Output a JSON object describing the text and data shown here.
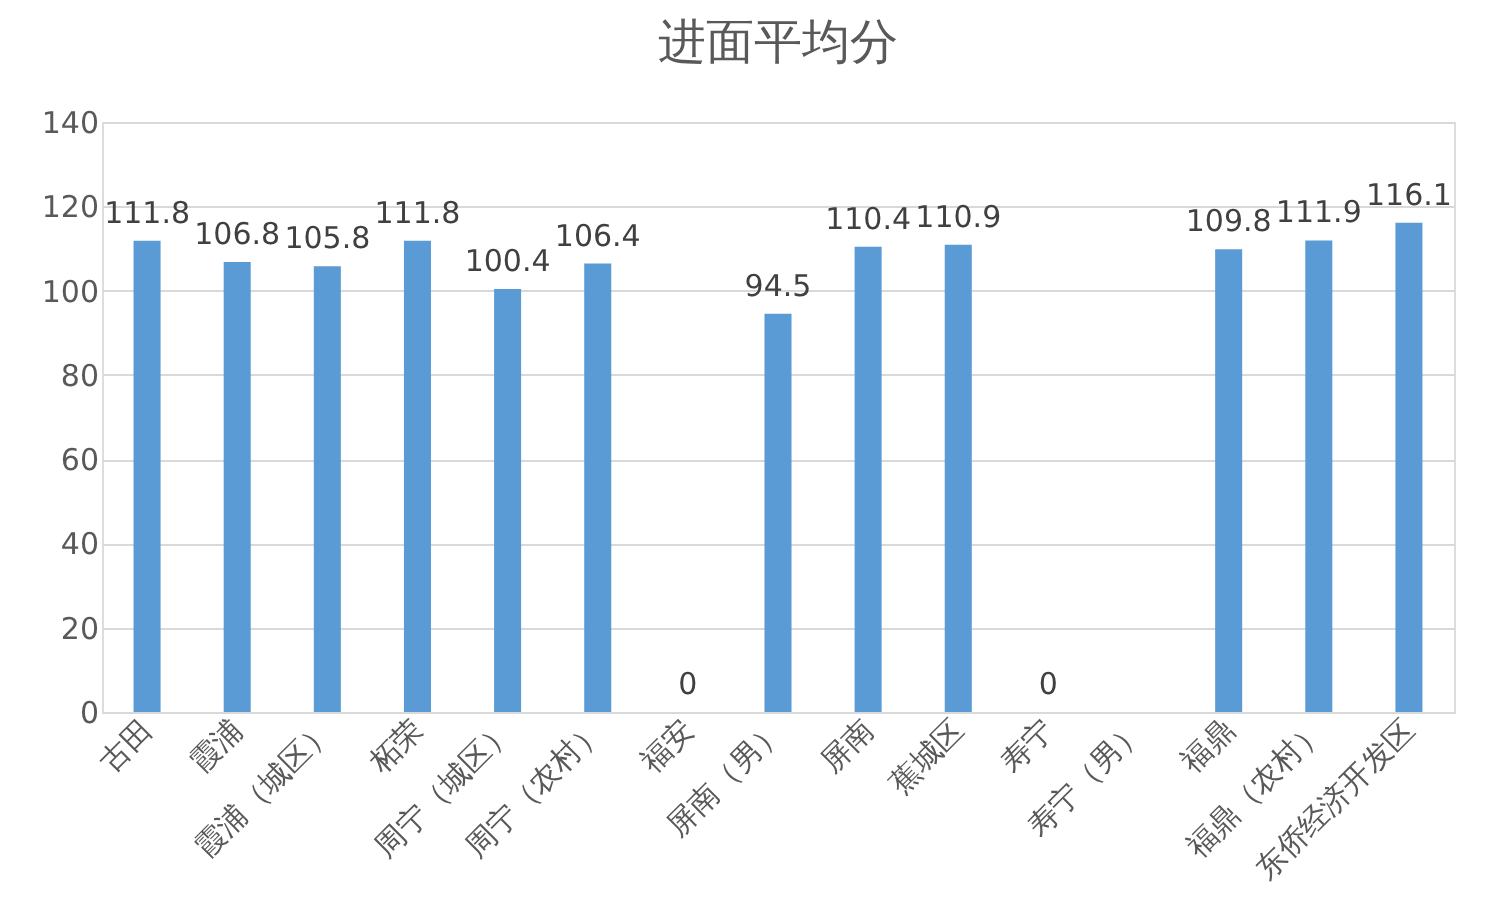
{
  "chart_data": {
    "type": "bar",
    "title": "进面平均分",
    "categories": [
      "古田",
      "霞浦",
      "霞浦（城区）",
      "柘荣",
      "周宁（城区）",
      "周宁（农村）",
      "福安",
      "屏南（男）",
      "屏南",
      "蕉城区",
      "寿宁",
      "寿宁（男）",
      "福鼎",
      "福鼎（农村）",
      "东侨经济开发区"
    ],
    "values": [
      111.8,
      106.8,
      105.8,
      111.8,
      100.4,
      106.4,
      0,
      94.5,
      110.4,
      110.9,
      0,
      null,
      109.8,
      111.9,
      116.1
    ],
    "color": "#5b9bd5",
    "ylim": [
      0,
      140
    ],
    "yticks": [
      0,
      20,
      40,
      60,
      80,
      100,
      120,
      140
    ],
    "grid": "y",
    "data_labels": true
  }
}
